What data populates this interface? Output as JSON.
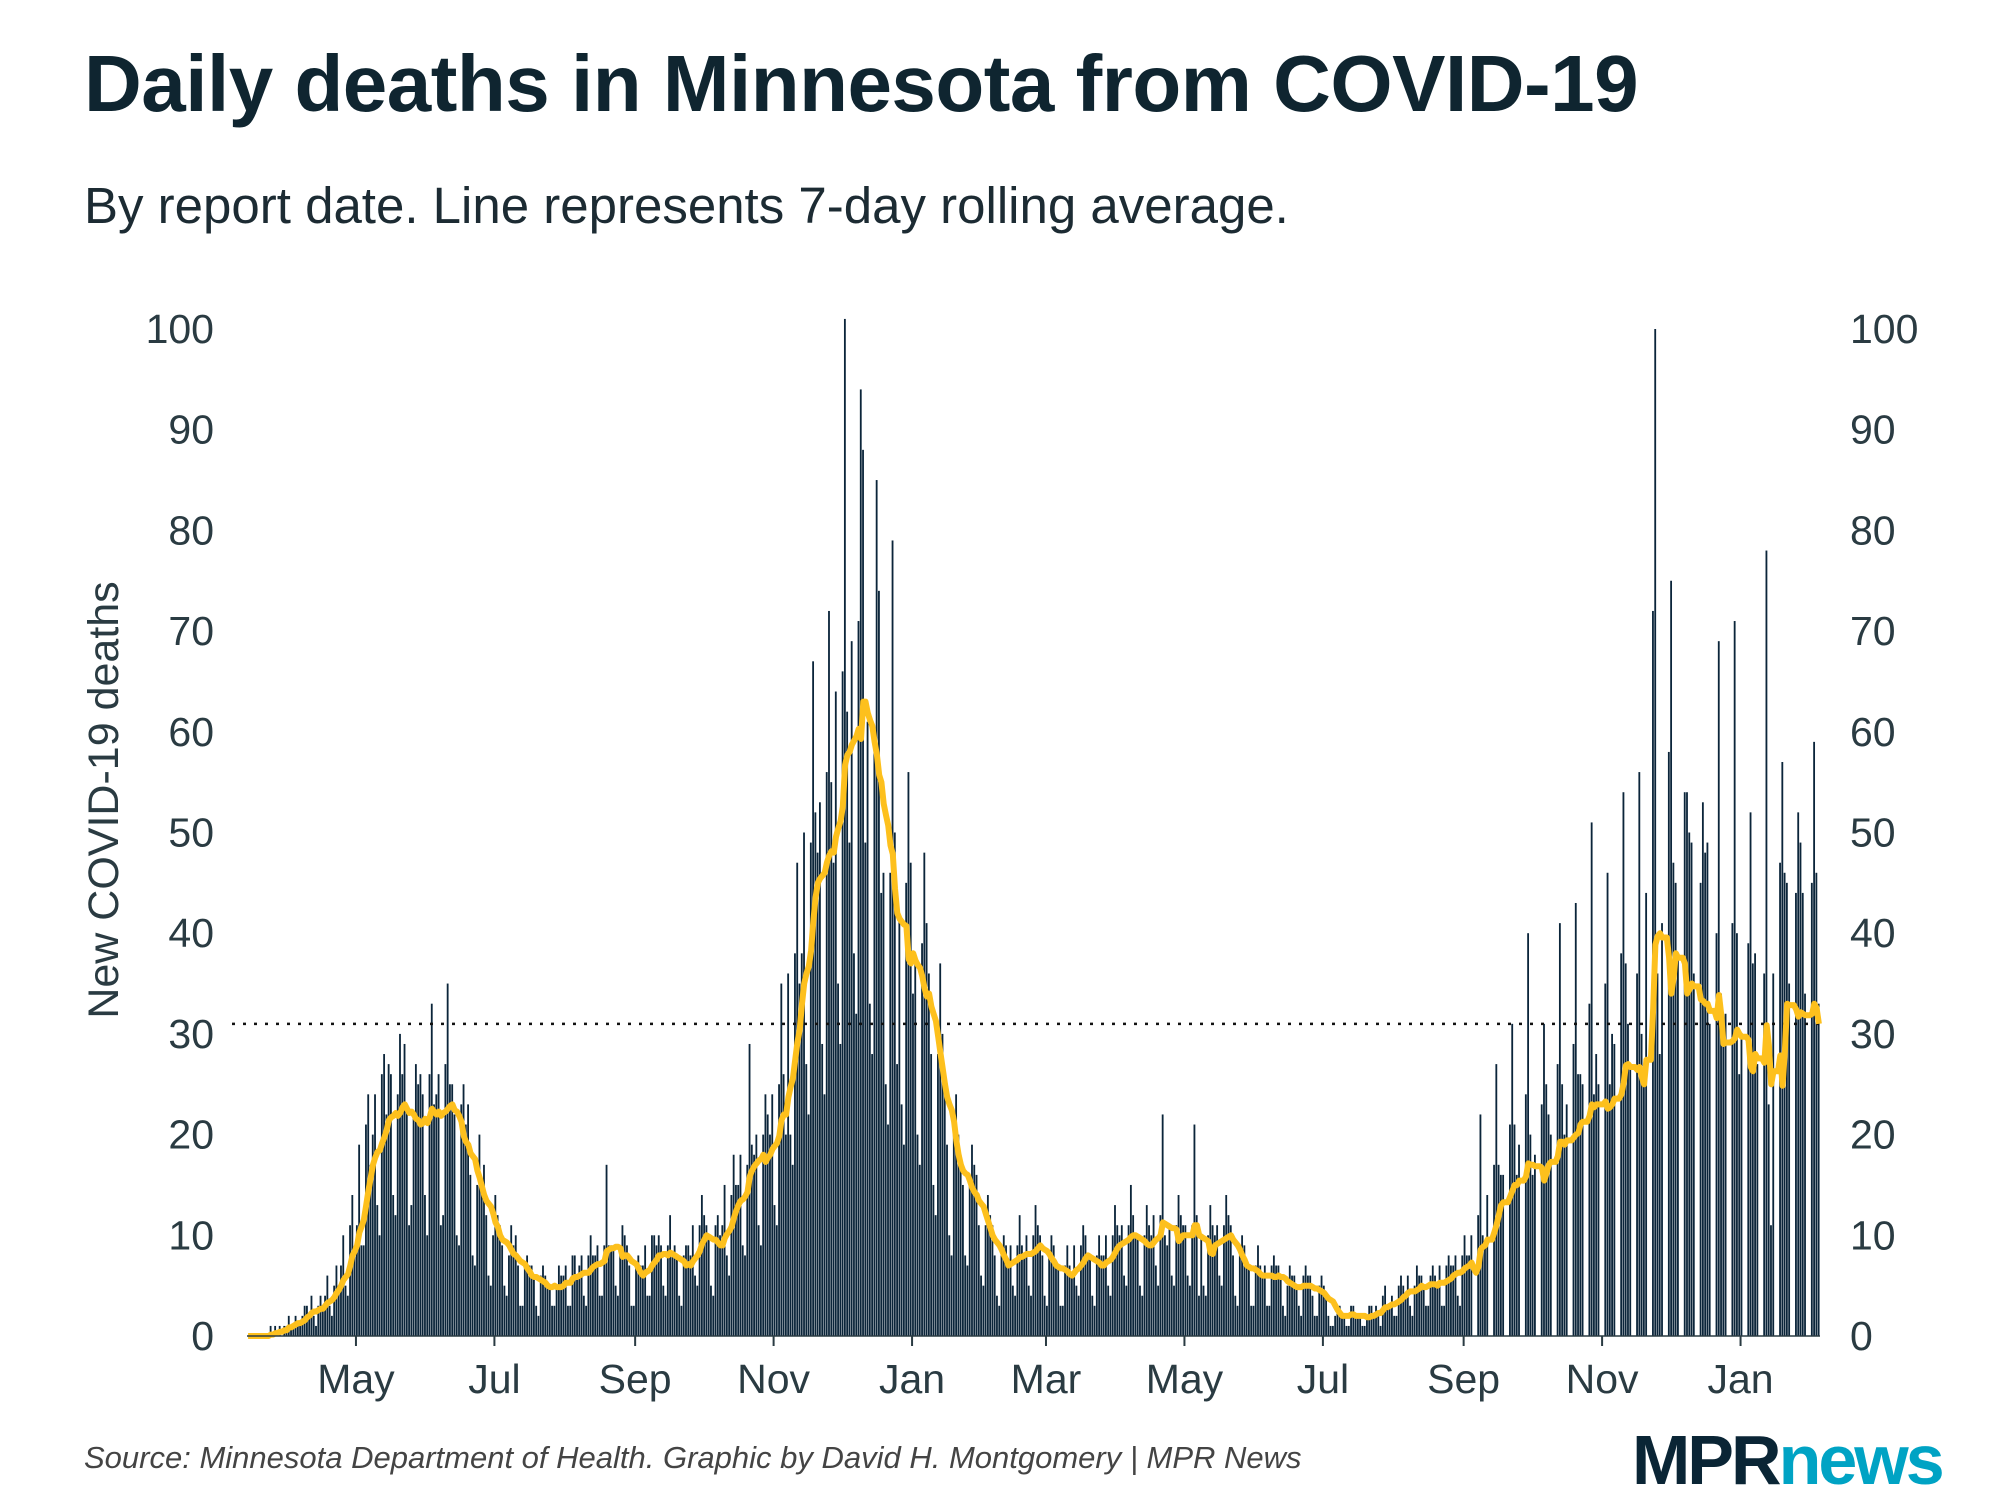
{
  "title": "Daily deaths in Minnesota from COVID-19",
  "subtitle": "By report date. Line represents 7-day rolling average.",
  "source": "Source: Minnesota Department of Health. Graphic by David H. Montgomery | MPR News",
  "logo": {
    "part1": "MPR",
    "part2": "news"
  },
  "colors": {
    "bars": "#0b253a",
    "line": "#fdc01d",
    "text": "#1c2b33",
    "logo_dark": "#0a2535",
    "logo_accent": "#00a3c4"
  },
  "chart_data": {
    "type": "bar",
    "title": "Daily deaths in Minnesota from COVID-19",
    "ylabel": "New COVID-19 deaths",
    "xlabel": "",
    "ylim": [
      0,
      100
    ],
    "yticks": [
      0,
      10,
      20,
      30,
      40,
      50,
      60,
      70,
      80,
      90,
      100
    ],
    "y_axis_both_sides": true,
    "xticks": [
      "May",
      "Jul",
      "Sep",
      "Nov",
      "Jan",
      "Mar",
      "May",
      "Jul",
      "Sep",
      "Nov",
      "Jan"
    ],
    "xtick_dates": [
      "2020-05-01",
      "2020-07-01",
      "2020-09-01",
      "2020-11-01",
      "2021-01-01",
      "2021-03-01",
      "2021-05-01",
      "2021-07-01",
      "2021-09-01",
      "2021-11-01",
      "2022-01-01"
    ],
    "start_date": "2020-03-14",
    "reference_line": 31,
    "overlay": "7-day rolling average line",
    "grid": false,
    "daily_deaths": [
      0,
      0,
      0,
      0,
      0,
      0,
      0,
      0,
      0,
      0,
      1,
      0,
      1,
      0,
      1,
      0,
      1,
      1,
      2,
      1,
      1,
      2,
      1,
      1,
      2,
      3,
      3,
      2,
      4,
      2,
      1,
      3,
      4,
      3,
      4,
      6,
      3,
      2,
      5,
      7,
      5,
      7,
      10,
      5,
      4,
      11,
      14,
      8,
      11,
      19,
      9,
      9,
      21,
      24,
      17,
      20,
      24,
      13,
      10,
      26,
      28,
      22,
      27,
      26,
      14,
      12,
      24,
      30,
      26,
      29,
      23,
      11,
      13,
      22,
      27,
      25,
      26,
      24,
      14,
      10,
      26,
      33,
      23,
      24,
      26,
      11,
      12,
      27,
      35,
      25,
      25,
      22,
      10,
      9,
      23,
      25,
      21,
      23,
      16,
      8,
      7,
      15,
      20,
      15,
      17,
      12,
      6,
      5,
      10,
      14,
      12,
      11,
      9,
      5,
      4,
      8,
      11,
      9,
      10,
      7,
      3,
      3,
      7,
      8,
      7,
      7,
      6,
      3,
      2,
      6,
      7,
      6,
      5,
      5,
      3,
      3,
      5,
      7,
      6,
      6,
      7,
      3,
      3,
      8,
      8,
      6,
      7,
      8,
      4,
      3,
      8,
      10,
      8,
      8,
      9,
      4,
      4,
      9,
      17,
      9,
      9,
      9,
      5,
      4,
      8,
      11,
      10,
      9,
      7,
      3,
      3,
      7,
      8,
      7,
      7,
      9,
      4,
      4,
      10,
      10,
      9,
      10,
      9,
      5,
      4,
      9,
      12,
      8,
      9,
      8,
      4,
      3,
      8,
      9,
      9,
      8,
      11,
      6,
      5,
      11,
      14,
      12,
      11,
      10,
      5,
      4,
      11,
      12,
      10,
      11,
      15,
      8,
      6,
      14,
      18,
      15,
      15,
      18,
      9,
      8,
      17,
      29,
      19,
      18,
      20,
      11,
      9,
      20,
      24,
      22,
      20,
      24,
      13,
      11,
      25,
      35,
      26,
      20,
      36,
      20,
      17,
      38,
      47,
      35,
      38,
      50,
      27,
      22,
      49,
      67,
      52,
      48,
      53,
      29,
      24,
      56,
      72,
      55,
      47,
      64,
      35,
      29,
      66,
      101,
      62,
      49,
      69,
      38,
      32,
      71,
      94,
      88,
      49,
      61,
      33,
      28,
      60,
      85,
      74,
      44,
      46,
      25,
      21,
      46,
      79,
      50,
      27,
      42,
      23,
      19,
      45,
      56,
      47,
      34,
      37,
      20,
      17,
      39,
      48,
      41,
      36,
      28,
      15,
      12,
      28,
      37,
      30,
      25,
      19,
      10,
      8,
      20,
      24,
      20,
      18,
      15,
      8,
      7,
      16,
      19,
      17,
      16,
      11,
      6,
      5,
      11,
      14,
      12,
      11,
      8,
      4,
      3,
      8,
      10,
      9,
      7,
      9,
      5,
      4,
      9,
      12,
      9,
      8,
      10,
      5,
      4,
      10,
      13,
      11,
      10,
      8,
      4,
      3,
      8,
      10,
      9,
      7,
      7,
      3,
      3,
      7,
      9,
      7,
      6,
      9,
      5,
      4,
      9,
      11,
      10,
      8,
      8,
      4,
      3,
      8,
      10,
      8,
      8,
      10,
      5,
      4,
      10,
      13,
      11,
      10,
      11,
      6,
      5,
      11,
      15,
      12,
      10,
      10,
      5,
      4,
      10,
      13,
      11,
      10,
      12,
      7,
      5,
      12,
      22,
      10,
      9,
      11,
      6,
      5,
      11,
      14,
      12,
      11,
      11,
      6,
      5,
      11,
      21,
      12,
      4,
      10,
      5,
      4,
      10,
      13,
      11,
      10,
      11,
      6,
      5,
      11,
      14,
      12,
      11,
      8,
      4,
      3,
      8,
      10,
      9,
      7,
      7,
      3,
      3,
      7,
      9,
      7,
      6,
      7,
      3,
      3,
      7,
      8,
      7,
      7,
      6,
      3,
      2,
      5,
      7,
      6,
      6,
      5,
      3,
      2,
      6,
      7,
      6,
      6,
      4,
      2,
      2,
      5,
      6,
      5,
      4,
      2,
      1,
      1,
      2,
      3,
      3,
      2,
      2,
      1,
      1,
      3,
      3,
      2,
      2,
      2,
      1,
      1,
      2,
      3,
      3,
      2,
      3,
      2,
      1,
      4,
      5,
      3,
      3,
      4,
      2,
      2,
      5,
      6,
      5,
      4,
      6,
      3,
      2,
      5,
      7,
      6,
      6,
      5,
      3,
      3,
      6,
      7,
      6,
      5,
      7,
      3,
      3,
      7,
      8,
      7,
      7,
      8,
      4,
      3,
      8,
      10,
      8,
      8,
      10,
      0,
      0,
      12,
      22,
      10,
      9,
      14,
      0,
      0,
      17,
      27,
      17,
      16,
      16,
      0,
      0,
      21,
      31,
      21,
      16,
      19,
      0,
      0,
      24,
      40,
      20,
      16,
      18,
      0,
      0,
      23,
      31,
      25,
      22,
      20,
      0,
      0,
      27,
      41,
      25,
      20,
      23,
      0,
      0,
      29,
      43,
      26,
      26,
      25,
      0,
      0,
      33,
      51,
      24,
      28,
      25,
      0,
      0,
      35,
      46,
      25,
      30,
      29,
      0,
      0,
      38,
      54,
      37,
      31,
      27,
      0,
      0,
      36,
      56,
      30,
      26,
      44,
      0,
      0,
      72,
      100,
      36,
      28,
      41,
      0,
      0,
      58,
      75,
      47,
      45,
      38,
      0,
      0,
      54,
      54,
      50,
      49,
      36,
      0,
      0,
      45,
      53,
      48,
      49,
      31,
      0,
      0,
      40,
      69,
      34,
      29,
      32,
      0,
      0,
      41,
      71,
      40,
      26,
      30,
      0,
      0,
      39,
      52,
      37,
      38,
      27,
      0,
      0,
      36,
      78,
      23,
      11,
      36,
      0,
      0,
      47,
      57,
      46,
      45,
      35,
      0,
      0,
      44,
      52,
      49,
      44,
      34,
      0,
      0,
      45,
      59,
      46,
      33
    ]
  }
}
